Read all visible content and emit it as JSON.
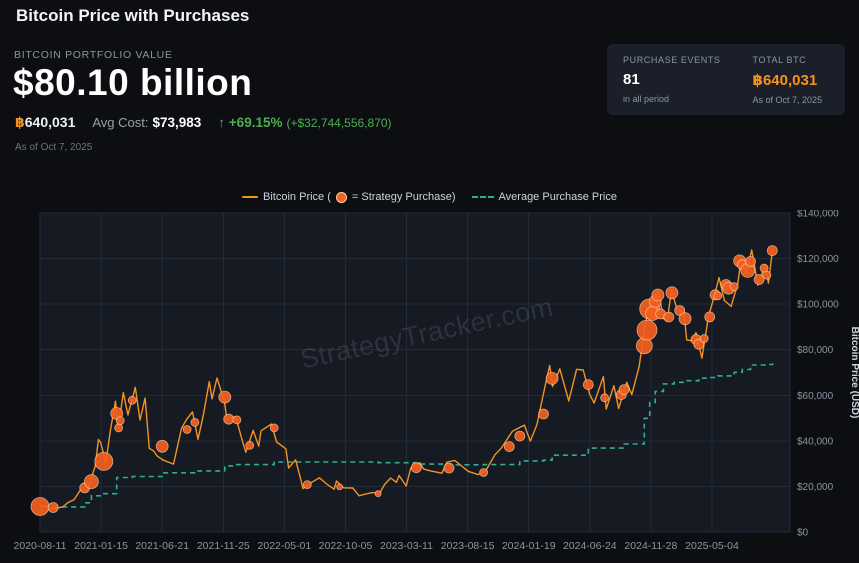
{
  "page": {
    "title": "Bitcoin Price with Purchases"
  },
  "header": {
    "section_label": "BITCOIN PORTFOLIO VALUE",
    "portfolio_value": "$80.10 billion",
    "btc_symbol": "฿",
    "btc_amount": "640,031",
    "avg_cost_label": "Avg Cost:",
    "avg_cost_value": "$73,983",
    "change_pct": "↑ +69.15%",
    "change_abs": "(+$32,744,556,870)",
    "as_of": "As of Oct 7, 2025"
  },
  "summary_card": {
    "purchase_events": {
      "label": "PURCHASE EVENTS",
      "value": "81",
      "sub": "in all period"
    },
    "total_btc": {
      "label": "TOTAL BTC",
      "value": "฿640,031",
      "sub": "As of Oct 7, 2025"
    }
  },
  "legend": {
    "price_label": "Bitcoin Price (",
    "purchase_label": "= Strategy Purchase)",
    "avg_label": "Average Purchase Price"
  },
  "watermark": "StrategyTracker.com",
  "colors": {
    "bitcoin_orange": "#f7931a",
    "price_line": "#f39324",
    "purchase_marker": "#f4601e",
    "average_line": "#2fae92",
    "gain_green": "#4caf50",
    "background": "#0c0e12",
    "card_background": "#1a1f2a"
  },
  "chart_data": {
    "type": "line",
    "title": "Bitcoin Price with Purchases",
    "xlabel": "",
    "ylabel": "Bitcoin Price (USD)",
    "ylim": [
      0,
      140000
    ],
    "ytick_step": 20000,
    "grid": true,
    "legend_position": "top-center",
    "plot_bg": "#151a23",
    "grid_color": "#242b37",
    "tick_color": "#8b95a2",
    "x_tick_labels": [
      "2020-08-11",
      "2021-01-15",
      "2021-06-21",
      "2021-11-25",
      "2022-05-01",
      "2022-10-05",
      "2023-03-11",
      "2023-08-15",
      "2024-01-19",
      "2024-06-24",
      "2024-11-28",
      "2025-05-04"
    ],
    "series": [
      {
        "name": "Bitcoin Price",
        "color": "#f39324",
        "points": [
          [
            "2020-08-11",
            11400
          ],
          [
            "2020-08-28",
            11300
          ],
          [
            "2020-09-06",
            10200
          ],
          [
            "2020-09-21",
            10450
          ],
          [
            "2020-10-08",
            10950
          ],
          [
            "2020-10-22",
            12950
          ],
          [
            "2020-11-06",
            14100
          ],
          [
            "2020-11-24",
            18800
          ],
          [
            "2020-12-11",
            18050
          ],
          [
            "2020-12-20",
            23400
          ],
          [
            "2020-12-31",
            28950
          ],
          [
            "2021-01-08",
            40600
          ],
          [
            "2021-01-14",
            39300
          ],
          [
            "2021-01-27",
            30400
          ],
          [
            "2021-02-08",
            44600
          ],
          [
            "2021-02-21",
            57400
          ],
          [
            "2021-02-28",
            45200
          ],
          [
            "2021-03-13",
            61200
          ],
          [
            "2021-03-25",
            51400
          ],
          [
            "2021-04-13",
            63500
          ],
          [
            "2021-04-25",
            49100
          ],
          [
            "2021-05-08",
            58800
          ],
          [
            "2021-05-19",
            36700
          ],
          [
            "2021-05-30",
            35600
          ],
          [
            "2021-06-08",
            33400
          ],
          [
            "2021-06-22",
            31700
          ],
          [
            "2021-07-20",
            29800
          ],
          [
            "2021-08-10",
            45600
          ],
          [
            "2021-08-23",
            49500
          ],
          [
            "2021-09-07",
            52700
          ],
          [
            "2021-09-21",
            40700
          ],
          [
            "2021-10-05",
            51500
          ],
          [
            "2021-10-20",
            66000
          ],
          [
            "2021-10-27",
            58400
          ],
          [
            "2021-11-09",
            67600
          ],
          [
            "2021-11-28",
            57300
          ],
          [
            "2021-12-04",
            49400
          ],
          [
            "2021-12-27",
            50700
          ],
          [
            "2022-01-10",
            41800
          ],
          [
            "2022-01-22",
            35000
          ],
          [
            "2022-02-10",
            44600
          ],
          [
            "2022-02-24",
            37700
          ],
          [
            "2022-03-02",
            44400
          ],
          [
            "2022-03-29",
            47400
          ],
          [
            "2022-04-11",
            39500
          ],
          [
            "2022-05-05",
            36500
          ],
          [
            "2022-05-12",
            28100
          ],
          [
            "2022-05-30",
            31700
          ],
          [
            "2022-06-13",
            22500
          ],
          [
            "2022-06-18",
            19000
          ],
          [
            "2022-07-08",
            21600
          ],
          [
            "2022-07-30",
            23800
          ],
          [
            "2022-08-19",
            20900
          ],
          [
            "2022-09-06",
            18800
          ],
          [
            "2022-09-12",
            22400
          ],
          [
            "2022-09-30",
            19400
          ],
          [
            "2022-10-24",
            19300
          ],
          [
            "2022-11-09",
            15900
          ],
          [
            "2022-11-24",
            16600
          ],
          [
            "2022-12-15",
            17400
          ],
          [
            "2022-12-30",
            16500
          ],
          [
            "2023-01-14",
            20900
          ],
          [
            "2023-01-29",
            23700
          ],
          [
            "2023-02-13",
            21800
          ],
          [
            "2023-02-20",
            24800
          ],
          [
            "2023-03-10",
            20200
          ],
          [
            "2023-03-22",
            28100
          ],
          [
            "2023-04-14",
            30400
          ],
          [
            "2023-04-24",
            27600
          ],
          [
            "2023-05-12",
            26800
          ],
          [
            "2023-06-10",
            25800
          ],
          [
            "2023-06-23",
            30700
          ],
          [
            "2023-07-13",
            31400
          ],
          [
            "2023-08-17",
            26600
          ],
          [
            "2023-09-11",
            25200
          ],
          [
            "2023-10-01",
            27000
          ],
          [
            "2023-10-24",
            33900
          ],
          [
            "2023-11-09",
            36700
          ],
          [
            "2023-12-08",
            44200
          ],
          [
            "2024-01-08",
            46900
          ],
          [
            "2024-01-23",
            39900
          ],
          [
            "2024-02-09",
            47100
          ],
          [
            "2024-02-28",
            62500
          ],
          [
            "2024-03-13",
            73100
          ],
          [
            "2024-03-20",
            63800
          ],
          [
            "2024-04-08",
            71600
          ],
          [
            "2024-05-01",
            57500
          ],
          [
            "2024-05-21",
            71400
          ],
          [
            "2024-06-07",
            71100
          ],
          [
            "2024-06-24",
            60300
          ],
          [
            "2024-07-05",
            56600
          ],
          [
            "2024-07-29",
            68200
          ],
          [
            "2024-08-05",
            54000
          ],
          [
            "2024-08-25",
            64200
          ],
          [
            "2024-09-06",
            54200
          ],
          [
            "2024-09-27",
            65700
          ],
          [
            "2024-10-10",
            60300
          ],
          [
            "2024-10-29",
            72700
          ],
          [
            "2024-11-11",
            88700
          ],
          [
            "2024-11-22",
            98900
          ],
          [
            "2024-12-05",
            102700
          ],
          [
            "2024-12-17",
            106100
          ],
          [
            "2024-12-30",
            93700
          ],
          [
            "2025-01-09",
            92500
          ],
          [
            "2025-01-20",
            106100
          ],
          [
            "2025-02-03",
            97700
          ],
          [
            "2025-02-21",
            96200
          ],
          [
            "2025-02-28",
            84300
          ],
          [
            "2025-03-14",
            83900
          ],
          [
            "2025-03-24",
            87500
          ],
          [
            "2025-04-08",
            76300
          ],
          [
            "2025-04-25",
            94700
          ],
          [
            "2025-05-11",
            104100
          ],
          [
            "2025-05-22",
            111700
          ],
          [
            "2025-06-05",
            101600
          ],
          [
            "2025-06-22",
            99000
          ],
          [
            "2025-07-09",
            108900
          ],
          [
            "2025-07-18",
            119800
          ],
          [
            "2025-08-01",
            113500
          ],
          [
            "2025-08-14",
            123800
          ],
          [
            "2025-08-30",
            108300
          ],
          [
            "2025-09-18",
            117500
          ],
          [
            "2025-09-26",
            109200
          ],
          [
            "2025-10-07",
            124500
          ]
        ]
      },
      {
        "name": "Average Purchase Price",
        "color": "#2fae92",
        "style": "dashed-step",
        "points": [
          [
            "2020-09-14",
            11000
          ],
          [
            "2020-12-04",
            12800
          ],
          [
            "2020-12-21",
            15900
          ],
          [
            "2021-01-22",
            16800
          ],
          [
            "2021-02-24",
            23900
          ],
          [
            "2021-04-05",
            24350
          ],
          [
            "2021-06-21",
            26000
          ],
          [
            "2021-09-13",
            26800
          ],
          [
            "2021-11-29",
            29000
          ],
          [
            "2021-12-30",
            29600
          ],
          [
            "2022-04-05",
            30700
          ],
          [
            "2022-12-28",
            30400
          ],
          [
            "2023-04-05",
            29800
          ],
          [
            "2023-06-28",
            29500
          ],
          [
            "2023-09-25",
            29600
          ],
          [
            "2023-12-27",
            31200
          ],
          [
            "2024-02-26",
            31500
          ],
          [
            "2024-03-19",
            33700
          ],
          [
            "2024-06-20",
            36800
          ],
          [
            "2024-09-20",
            38600
          ],
          [
            "2024-11-11",
            49900
          ],
          [
            "2024-11-25",
            56800
          ],
          [
            "2024-12-09",
            61700
          ],
          [
            "2024-12-30",
            65000
          ],
          [
            "2025-01-27",
            65700
          ],
          [
            "2025-02-24",
            66400
          ],
          [
            "2025-03-31",
            67500
          ],
          [
            "2025-04-28",
            67800
          ],
          [
            "2025-05-19",
            68500
          ],
          [
            "2025-06-30",
            70100
          ],
          [
            "2025-07-21",
            71300
          ],
          [
            "2025-08-11",
            73300
          ],
          [
            "2025-09-22",
            73500
          ],
          [
            "2025-10-07",
            73983
          ]
        ]
      }
    ],
    "purchases": {
      "name": "Strategy Purchase",
      "color": "#f4601e",
      "points": [
        [
          "2020-08-11",
          11200,
          9
        ],
        [
          "2020-09-14",
          10750,
          5
        ],
        [
          "2020-12-04",
          19400,
          5
        ],
        [
          "2020-12-21",
          22100,
          7
        ],
        [
          "2021-01-22",
          31000,
          9
        ],
        [
          "2021-02-24",
          52000,
          6
        ],
        [
          "2021-03-01",
          45700,
          4
        ],
        [
          "2021-03-05",
          48900,
          4
        ],
        [
          "2021-04-05",
          57800,
          4
        ],
        [
          "2021-06-21",
          37600,
          6
        ],
        [
          "2021-08-24",
          45000,
          4
        ],
        [
          "2021-09-13",
          48100,
          4
        ],
        [
          "2021-11-29",
          59200,
          6
        ],
        [
          "2021-12-09",
          49500,
          5
        ],
        [
          "2021-12-30",
          49200,
          4
        ],
        [
          "2022-02-01",
          38000,
          4
        ],
        [
          "2022-04-05",
          45700,
          4
        ],
        [
          "2022-06-29",
          20800,
          4
        ],
        [
          "2022-09-20",
          19800,
          3
        ],
        [
          "2022-12-28",
          16800,
          3
        ],
        [
          "2023-04-05",
          28200,
          5
        ],
        [
          "2023-06-28",
          28100,
          5
        ],
        [
          "2023-09-25",
          26100,
          4
        ],
        [
          "2023-11-30",
          37500,
          5
        ],
        [
          "2023-12-27",
          42100,
          5
        ],
        [
          "2024-02-26",
          51800,
          5
        ],
        [
          "2024-03-19",
          67400,
          6
        ],
        [
          "2024-06-20",
          64700,
          5
        ],
        [
          "2024-08-01",
          58900,
          4
        ],
        [
          "2024-09-13",
          60300,
          5
        ],
        [
          "2024-09-20",
          62500,
          5
        ],
        [
          "2024-11-11",
          81700,
          8
        ],
        [
          "2024-11-18",
          88600,
          10
        ],
        [
          "2024-11-25",
          97900,
          10
        ],
        [
          "2024-12-02",
          95900,
          7
        ],
        [
          "2024-12-09",
          101200,
          6
        ],
        [
          "2024-12-16",
          104000,
          6
        ],
        [
          "2024-12-23",
          95700,
          5
        ],
        [
          "2025-01-13",
          94300,
          5
        ],
        [
          "2025-01-21",
          105000,
          6
        ],
        [
          "2025-02-10",
          97200,
          5
        ],
        [
          "2025-02-24",
          93600,
          6
        ],
        [
          "2025-03-24",
          84500,
          5
        ],
        [
          "2025-03-31",
          82400,
          5
        ],
        [
          "2025-04-14",
          84900,
          4
        ],
        [
          "2025-04-28",
          94400,
          5
        ],
        [
          "2025-05-12",
          104100,
          5
        ],
        [
          "2025-05-19",
          103600,
          4
        ],
        [
          "2025-06-09",
          108600,
          5
        ],
        [
          "2025-06-16",
          107000,
          6
        ],
        [
          "2025-06-30",
          107700,
          4
        ],
        [
          "2025-07-14",
          119000,
          6
        ],
        [
          "2025-07-21",
          117300,
          5
        ],
        [
          "2025-08-04",
          114800,
          7
        ],
        [
          "2025-08-11",
          118700,
          5
        ],
        [
          "2025-09-02",
          110800,
          5
        ],
        [
          "2025-09-15",
          115800,
          4
        ],
        [
          "2025-09-22",
          112700,
          4
        ],
        [
          "2025-10-06",
          123500,
          5
        ]
      ]
    }
  }
}
